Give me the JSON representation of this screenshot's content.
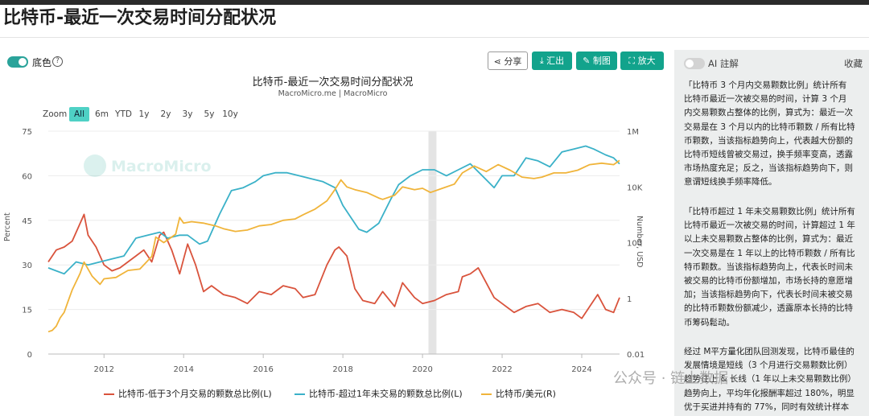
{
  "page": {
    "title": "比特币-最近一次交易时间分配状况"
  },
  "controls": {
    "bg_toggle_label": "底色",
    "help_glyph": "?",
    "share_label": "分享",
    "export_label": "汇出",
    "draw_label": "制图",
    "zoom_label": "放大"
  },
  "chart": {
    "title": "比特币-最近一次交易时间分配状况",
    "subtitle": "MacroMicro.me | MacroMicro",
    "watermark": "MacroMicro",
    "zoom_prefix": "Zoom",
    "zoom_options": [
      "All",
      "6m",
      "YTD",
      "1y",
      "2y",
      "3y",
      "5y",
      "10y"
    ],
    "zoom_selected": "All",
    "ylabel_left": "Percent",
    "ylabel_right": "Number, USD",
    "legend": [
      "比特币-低于3个月交易的颗数总比例(L)",
      "比特币-超过1年未交易的颗数总比例(L)",
      "比特币/美元(R)"
    ]
  },
  "chart_data": {
    "type": "line",
    "title": "比特币-最近一次交易时间分配状况",
    "subtitle": "MacroMicro.me | MacroMicro",
    "xlabel": "",
    "ylabel": "Percent",
    "ylabel_right": "Number, USD",
    "x_ticks": [
      "2012",
      "2014",
      "2016",
      "2018",
      "2020",
      "2022",
      "2024"
    ],
    "y_ticks_left": [
      0,
      15,
      30,
      45,
      60,
      75
    ],
    "y_ticks_right": [
      "0.01",
      "1",
      "100",
      "10K",
      "1M"
    ],
    "ylim_left": [
      0,
      75
    ],
    "ylim_right_log10": [
      -2,
      6
    ],
    "xlim": [
      2010.6,
      2024.95
    ],
    "grid": true,
    "legend_position": "bottom",
    "shaded_band": [
      2020.15,
      2020.35
    ],
    "colors": {
      "short_term": "#d9533c",
      "long_term": "#3ab1c8",
      "price": "#f0b43a"
    },
    "series": [
      {
        "name": "比特币-低于3个月交易的颗数总比例(L)",
        "axis": "left",
        "x": [
          2010.6,
          2010.8,
          2011.0,
          2011.2,
          2011.4,
          2011.5,
          2011.6,
          2011.8,
          2012.0,
          2012.2,
          2012.4,
          2012.6,
          2012.8,
          2013.0,
          2013.2,
          2013.4,
          2013.5,
          2013.7,
          2013.9,
          2014.0,
          2014.1,
          2014.3,
          2014.5,
          2014.7,
          2015.0,
          2015.3,
          2015.6,
          2015.9,
          2016.2,
          2016.5,
          2016.8,
          2017.0,
          2017.3,
          2017.6,
          2017.8,
          2017.9,
          2018.1,
          2018.3,
          2018.5,
          2018.8,
          2019.0,
          2019.3,
          2019.5,
          2019.8,
          2020.0,
          2020.3,
          2020.6,
          2020.9,
          2021.0,
          2021.2,
          2021.4,
          2021.6,
          2021.8,
          2022.0,
          2022.3,
          2022.6,
          2022.9,
          2023.2,
          2023.5,
          2023.8,
          2024.0,
          2024.2,
          2024.4,
          2024.6,
          2024.8,
          2024.95
        ],
        "y": [
          31,
          35,
          36,
          38,
          44,
          47,
          40,
          36,
          30,
          28,
          29,
          31,
          33,
          35,
          31,
          40,
          41,
          35,
          27,
          32,
          37,
          30,
          21,
          23,
          20,
          19,
          17,
          21,
          20,
          23,
          22,
          19,
          20,
          30,
          35,
          36,
          33,
          22,
          18,
          17,
          21,
          16,
          24,
          19,
          17,
          18,
          20,
          21,
          26,
          27,
          29,
          24,
          19,
          17,
          14,
          16,
          17,
          14,
          15,
          14,
          12,
          16,
          20,
          15,
          14,
          19
        ]
      },
      {
        "name": "比特币-超过1年未交易的颗数总比例(L)",
        "axis": "left",
        "x": [
          2010.6,
          2010.8,
          2011.0,
          2011.3,
          2011.6,
          2011.9,
          2012.2,
          2012.5,
          2012.8,
          2013.1,
          2013.4,
          2013.6,
          2013.9,
          2014.1,
          2014.4,
          2014.6,
          2014.9,
          2015.2,
          2015.5,
          2015.8,
          2016.0,
          2016.3,
          2016.6,
          2016.9,
          2017.2,
          2017.5,
          2017.8,
          2018.0,
          2018.2,
          2018.4,
          2018.6,
          2018.9,
          2019.2,
          2019.4,
          2019.7,
          2020.0,
          2020.3,
          2020.6,
          2020.9,
          2021.2,
          2021.5,
          2021.8,
          2022.0,
          2022.3,
          2022.6,
          2022.9,
          2023.2,
          2023.5,
          2023.8,
          2024.1,
          2024.3,
          2024.6,
          2024.8,
          2024.95
        ],
        "y": [
          29,
          28,
          27,
          31,
          30,
          31,
          32,
          33,
          39,
          40,
          41,
          39,
          40,
          40,
          37,
          38,
          47,
          55,
          56,
          58,
          60,
          61,
          61,
          60,
          59,
          58,
          56,
          50,
          46,
          42,
          41,
          44,
          52,
          57,
          60,
          62,
          62,
          60,
          62,
          64,
          60,
          56,
          60,
          60,
          66,
          65,
          63,
          68,
          69,
          70,
          69,
          67,
          66,
          64
        ]
      },
      {
        "name": "比特币/美元(R)",
        "axis": "right",
        "x": [
          2010.6,
          2010.7,
          2010.8,
          2010.9,
          2011.0,
          2011.1,
          2011.2,
          2011.4,
          2011.5,
          2011.7,
          2011.9,
          2012.0,
          2012.3,
          2012.6,
          2012.9,
          2013.2,
          2013.3,
          2013.5,
          2013.8,
          2013.9,
          2014.0,
          2014.2,
          2014.5,
          2014.8,
          2015.0,
          2015.3,
          2015.6,
          2015.9,
          2016.2,
          2016.5,
          2016.8,
          2017.0,
          2017.3,
          2017.6,
          2017.8,
          2017.95,
          2018.1,
          2018.3,
          2018.6,
          2018.9,
          2019.0,
          2019.3,
          2019.5,
          2019.8,
          2020.0,
          2020.2,
          2020.5,
          2020.8,
          2021.0,
          2021.3,
          2021.6,
          2021.9,
          2022.2,
          2022.5,
          2022.8,
          2023.0,
          2023.3,
          2023.6,
          2023.9,
          2024.2,
          2024.5,
          2024.8,
          2024.95
        ],
        "y_log10": [
          -1.2,
          -1.15,
          -1.0,
          -0.7,
          -0.5,
          -0.1,
          0.3,
          0.9,
          1.3,
          0.8,
          0.5,
          0.7,
          0.75,
          1.0,
          1.05,
          1.5,
          2.2,
          2.0,
          2.3,
          2.9,
          2.7,
          2.75,
          2.7,
          2.6,
          2.5,
          2.4,
          2.45,
          2.6,
          2.65,
          2.8,
          2.85,
          3.0,
          3.2,
          3.5,
          3.9,
          4.25,
          4.0,
          3.9,
          3.8,
          3.6,
          3.55,
          3.7,
          4.0,
          3.9,
          3.95,
          3.8,
          3.95,
          4.1,
          4.5,
          4.75,
          4.55,
          4.8,
          4.6,
          4.35,
          4.3,
          4.35,
          4.5,
          4.5,
          4.6,
          4.8,
          4.85,
          4.8,
          4.95
        ]
      }
    ]
  },
  "panel": {
    "ai_label": "AI 註解",
    "collapse_label": "收藏",
    "paragraphs": [
      [
        "「比特币 3 个月内交易颗数比例」统计所有",
        "比特币最近一次被交易的时间，计算 3 个月",
        "内交易颗数占整体的比例，算式为：最近一次",
        "交易是在 3 个月以内的比特币颗数 / 所有比特",
        "币颗数，当该指标趋势向上，代表越大份额的",
        "比特币短线曾被交易过，换手频率变高，透露",
        "市场热度充足；反之，当该指标趋势向下，则",
        "意谓短线换手频率降低。"
      ],
      [
        "「比特币超过 1 年未交易颗数比例」统计所有",
        "比特币最近一次被交易的时间，计算超过 1 年",
        "以上未交易颗数占整体的比例，算式为：最近",
        "一次交易是在 1 年以上的比特币颗数 / 所有比",
        "特币颗数。当该指标趋势向上，代表长时间未",
        "被交易的比特币份额增加，市场长持的意愿增",
        "加；当该指标趋势向下，代表长时间未被交易",
        "的比特币颗数份额减少，透露原本长持的比特",
        "币筹码鬆动。"
      ],
      [
        "经过 M平方量化团队回测发现，比特币最佳的",
        "发展情境是短线（3 个月进行交易颗数比例）",
        "趋势往上 & 长线（1 年以上未交易颗数比例）",
        "趋势向上，平均年化报酬率超过 180%，明显",
        "优于买进并持有的 77%，同时有效统计样本"
      ]
    ],
    "watermark": "公众号 · 链上数据"
  }
}
